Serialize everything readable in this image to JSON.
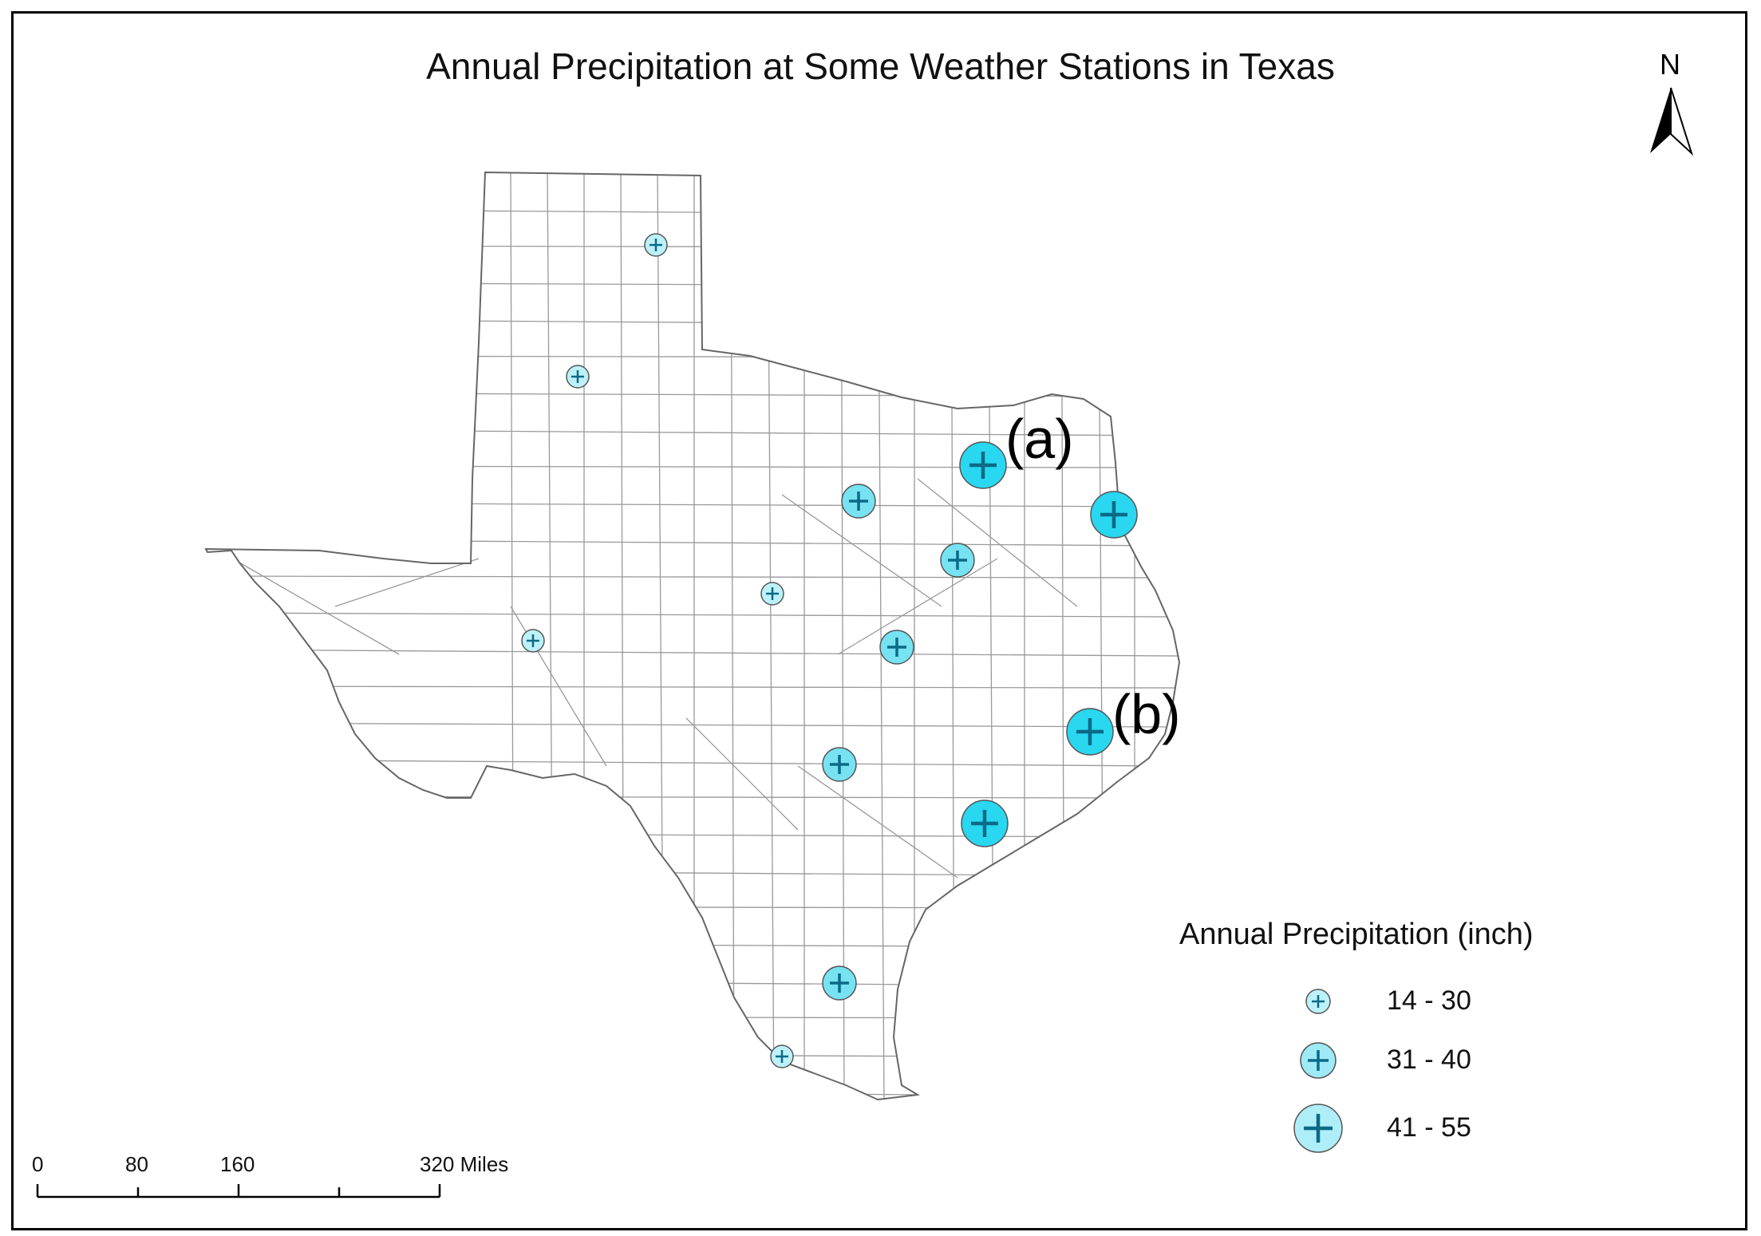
{
  "title": "Annual Precipitation at Some Weather Stations in Texas",
  "north_label": "N",
  "colors": {
    "fill_small": "#bdf1fa",
    "fill_medium": "#77e2f2",
    "fill_large": "#29d7f0",
    "cross": "#0b6a86",
    "outline": "#555555",
    "county_line": "#999999",
    "state_line": "#666666"
  },
  "legend": {
    "title": "Annual Precipitation (inch)",
    "classes": [
      {
        "label": "14 - 30",
        "size": "small"
      },
      {
        "label": "31 - 40",
        "size": "medium"
      },
      {
        "label": "41 - 55",
        "size": "large"
      }
    ]
  },
  "scale_bar": {
    "labels": [
      "0",
      "80",
      "160",
      "320 Miles"
    ]
  },
  "stations": [
    {
      "id": "amarillo",
      "precip_class": "14 - 30",
      "tag": ""
    },
    {
      "id": "lubbock",
      "precip_class": "14 - 30",
      "tag": ""
    },
    {
      "id": "abilene",
      "precip_class": "14 - 30",
      "tag": ""
    },
    {
      "id": "midland",
      "precip_class": "14 - 30",
      "tag": ""
    },
    {
      "id": "laredo",
      "precip_class": "14 - 30",
      "tag": ""
    },
    {
      "id": "dallas-fort-worth",
      "precip_class": "31 - 40",
      "tag": ""
    },
    {
      "id": "waco",
      "precip_class": "31 - 40",
      "tag": ""
    },
    {
      "id": "austin",
      "precip_class": "31 - 40",
      "tag": ""
    },
    {
      "id": "san-antonio",
      "precip_class": "31 - 40",
      "tag": ""
    },
    {
      "id": "corpus-christi",
      "precip_class": "31 - 40",
      "tag": ""
    },
    {
      "id": "station-a",
      "precip_class": "41 - 55",
      "tag": "(a)"
    },
    {
      "id": "tyler-longview",
      "precip_class": "41 - 55",
      "tag": ""
    },
    {
      "id": "station-b-houston",
      "precip_class": "41 - 55",
      "tag": "(b)"
    },
    {
      "id": "victoria",
      "precip_class": "41 - 55",
      "tag": ""
    }
  ]
}
